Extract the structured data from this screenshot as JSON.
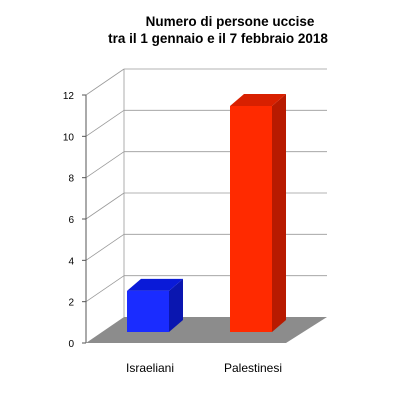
{
  "chart_data": {
    "type": "bar",
    "title_lines": [
      "Numero di persone uccise",
      "tra il 1 gennaio e il 7 febbraio 2018"
    ],
    "categories": [
      "Israeliani",
      "Palestinesi"
    ],
    "values": [
      2,
      11
    ],
    "yticks": [
      0,
      2,
      4,
      6,
      8,
      10,
      12
    ],
    "ylim": [
      0,
      12
    ],
    "grid": true,
    "colors": {
      "bars": [
        "#1a2cff",
        "#ff2a00"
      ],
      "bars_side": [
        "#0a16b0",
        "#b81a00"
      ],
      "bars_top": [
        "#0a1ad8",
        "#d82000"
      ],
      "floor": "#8c8c8c"
    }
  }
}
